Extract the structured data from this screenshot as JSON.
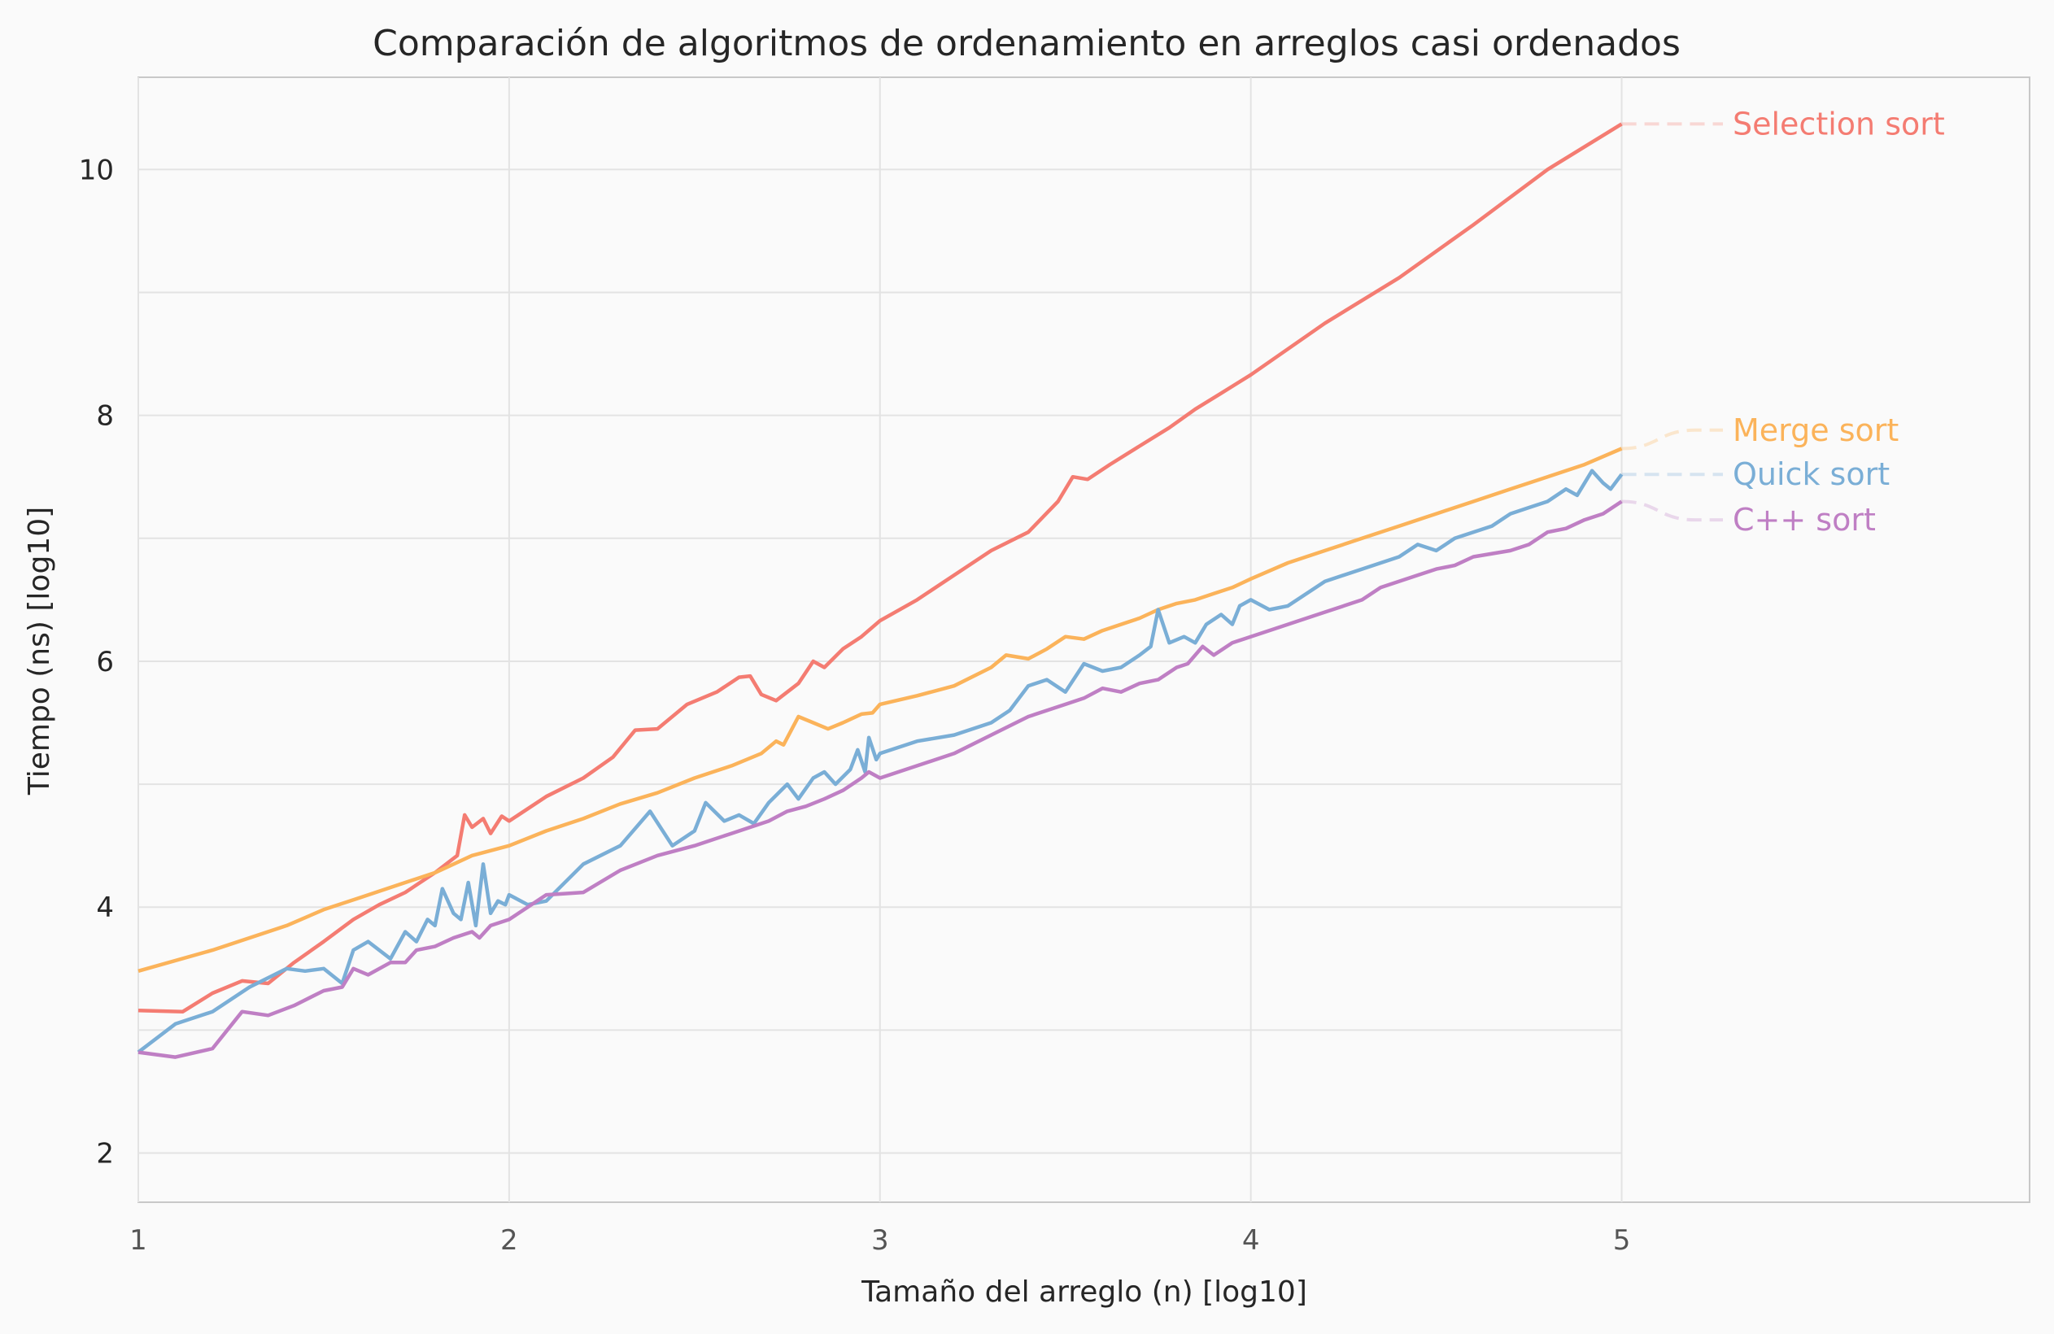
{
  "chart_data": {
    "type": "line",
    "title": "Comparación de algoritmos de ordenamiento en arreglos casi ordenados",
    "xlabel": "Tamaño del arreglo (n) [log10]",
    "ylabel": "Tiempo (ns) [log10]",
    "xlim": [
      1,
      6.1
    ],
    "ylim": [
      1.6,
      10.75
    ],
    "xticks": [
      1,
      2,
      3,
      4,
      5
    ],
    "xtick_labels": [
      "1",
      "2",
      "3",
      "4",
      "5"
    ],
    "yticks": [
      2,
      4,
      6,
      8,
      10
    ],
    "ytick_labels": [
      "2",
      "4",
      "6",
      "8",
      "10"
    ],
    "yminor": [
      3,
      5,
      7,
      9
    ],
    "grid": true,
    "legend": "direct labels at right end of lines",
    "series": [
      {
        "name": "Selection sort",
        "color": "#f47c72",
        "label_y": 10.37,
        "points": [
          [
            1.0,
            3.16
          ],
          [
            1.12,
            3.15
          ],
          [
            1.2,
            3.3
          ],
          [
            1.28,
            3.4
          ],
          [
            1.35,
            3.38
          ],
          [
            1.42,
            3.55
          ],
          [
            1.5,
            3.72
          ],
          [
            1.58,
            3.9
          ],
          [
            1.65,
            4.02
          ],
          [
            1.72,
            4.12
          ],
          [
            1.8,
            4.28
          ],
          [
            1.86,
            4.42
          ],
          [
            1.88,
            4.75
          ],
          [
            1.9,
            4.65
          ],
          [
            1.93,
            4.72
          ],
          [
            1.95,
            4.6
          ],
          [
            1.98,
            4.74
          ],
          [
            2.0,
            4.7
          ],
          [
            2.1,
            4.9
          ],
          [
            2.2,
            5.05
          ],
          [
            2.28,
            5.22
          ],
          [
            2.34,
            5.44
          ],
          [
            2.4,
            5.45
          ],
          [
            2.48,
            5.65
          ],
          [
            2.56,
            5.75
          ],
          [
            2.62,
            5.87
          ],
          [
            2.65,
            5.88
          ],
          [
            2.68,
            5.73
          ],
          [
            2.72,
            5.68
          ],
          [
            2.78,
            5.82
          ],
          [
            2.82,
            6.0
          ],
          [
            2.85,
            5.95
          ],
          [
            2.9,
            6.1
          ],
          [
            2.95,
            6.2
          ],
          [
            3.0,
            6.33
          ],
          [
            3.1,
            6.5
          ],
          [
            3.2,
            6.7
          ],
          [
            3.3,
            6.9
          ],
          [
            3.4,
            7.05
          ],
          [
            3.48,
            7.3
          ],
          [
            3.52,
            7.5
          ],
          [
            3.56,
            7.48
          ],
          [
            3.62,
            7.6
          ],
          [
            3.7,
            7.75
          ],
          [
            3.78,
            7.9
          ],
          [
            3.85,
            8.05
          ],
          [
            3.92,
            8.18
          ],
          [
            4.0,
            8.33
          ],
          [
            4.2,
            8.75
          ],
          [
            4.4,
            9.12
          ],
          [
            4.6,
            9.55
          ],
          [
            4.8,
            10.0
          ],
          [
            5.0,
            10.37
          ]
        ]
      },
      {
        "name": "Merge sort",
        "color": "#fbb35a",
        "label_y": 7.88,
        "points": [
          [
            1.0,
            3.48
          ],
          [
            1.2,
            3.65
          ],
          [
            1.4,
            3.85
          ],
          [
            1.5,
            3.98
          ],
          [
            1.6,
            4.08
          ],
          [
            1.7,
            4.18
          ],
          [
            1.8,
            4.28
          ],
          [
            1.9,
            4.42
          ],
          [
            2.0,
            4.5
          ],
          [
            2.1,
            4.62
          ],
          [
            2.2,
            4.72
          ],
          [
            2.3,
            4.84
          ],
          [
            2.4,
            4.93
          ],
          [
            2.5,
            5.05
          ],
          [
            2.6,
            5.15
          ],
          [
            2.68,
            5.25
          ],
          [
            2.72,
            5.35
          ],
          [
            2.74,
            5.32
          ],
          [
            2.78,
            5.55
          ],
          [
            2.82,
            5.5
          ],
          [
            2.86,
            5.45
          ],
          [
            2.9,
            5.5
          ],
          [
            2.95,
            5.57
          ],
          [
            2.98,
            5.58
          ],
          [
            3.0,
            5.65
          ],
          [
            3.1,
            5.72
          ],
          [
            3.2,
            5.8
          ],
          [
            3.3,
            5.95
          ],
          [
            3.34,
            6.05
          ],
          [
            3.4,
            6.02
          ],
          [
            3.45,
            6.1
          ],
          [
            3.5,
            6.2
          ],
          [
            3.55,
            6.18
          ],
          [
            3.6,
            6.25
          ],
          [
            3.7,
            6.35
          ],
          [
            3.75,
            6.42
          ],
          [
            3.8,
            6.47
          ],
          [
            3.85,
            6.5
          ],
          [
            3.9,
            6.55
          ],
          [
            3.95,
            6.6
          ],
          [
            4.0,
            6.67
          ],
          [
            4.1,
            6.8
          ],
          [
            4.2,
            6.9
          ],
          [
            4.3,
            7.0
          ],
          [
            4.4,
            7.1
          ],
          [
            4.5,
            7.2
          ],
          [
            4.6,
            7.3
          ],
          [
            4.7,
            7.4
          ],
          [
            4.8,
            7.5
          ],
          [
            4.9,
            7.6
          ],
          [
            5.0,
            7.73
          ]
        ]
      },
      {
        "name": "Quick sort",
        "color": "#7aaed6",
        "label_y": 7.52,
        "points": [
          [
            1.0,
            2.82
          ],
          [
            1.1,
            3.05
          ],
          [
            1.2,
            3.15
          ],
          [
            1.3,
            3.35
          ],
          [
            1.4,
            3.5
          ],
          [
            1.45,
            3.48
          ],
          [
            1.5,
            3.5
          ],
          [
            1.55,
            3.38
          ],
          [
            1.58,
            3.65
          ],
          [
            1.62,
            3.72
          ],
          [
            1.68,
            3.58
          ],
          [
            1.72,
            3.8
          ],
          [
            1.75,
            3.72
          ],
          [
            1.78,
            3.9
          ],
          [
            1.8,
            3.85
          ],
          [
            1.82,
            4.15
          ],
          [
            1.85,
            3.95
          ],
          [
            1.87,
            3.9
          ],
          [
            1.89,
            4.2
          ],
          [
            1.91,
            3.85
          ],
          [
            1.93,
            4.35
          ],
          [
            1.95,
            3.95
          ],
          [
            1.97,
            4.05
          ],
          [
            1.99,
            4.02
          ],
          [
            2.0,
            4.1
          ],
          [
            2.05,
            4.02
          ],
          [
            2.1,
            4.05
          ],
          [
            2.2,
            4.35
          ],
          [
            2.3,
            4.5
          ],
          [
            2.38,
            4.78
          ],
          [
            2.44,
            4.5
          ],
          [
            2.5,
            4.62
          ],
          [
            2.53,
            4.85
          ],
          [
            2.58,
            4.7
          ],
          [
            2.62,
            4.75
          ],
          [
            2.66,
            4.68
          ],
          [
            2.7,
            4.85
          ],
          [
            2.75,
            5.0
          ],
          [
            2.78,
            4.88
          ],
          [
            2.82,
            5.05
          ],
          [
            2.85,
            5.1
          ],
          [
            2.88,
            5.0
          ],
          [
            2.92,
            5.12
          ],
          [
            2.94,
            5.28
          ],
          [
            2.96,
            5.1
          ],
          [
            2.97,
            5.38
          ],
          [
            2.99,
            5.2
          ],
          [
            3.0,
            5.25
          ],
          [
            3.1,
            5.35
          ],
          [
            3.2,
            5.4
          ],
          [
            3.3,
            5.5
          ],
          [
            3.35,
            5.6
          ],
          [
            3.4,
            5.8
          ],
          [
            3.45,
            5.85
          ],
          [
            3.5,
            5.75
          ],
          [
            3.55,
            5.98
          ],
          [
            3.6,
            5.92
          ],
          [
            3.65,
            5.95
          ],
          [
            3.7,
            6.05
          ],
          [
            3.73,
            6.12
          ],
          [
            3.75,
            6.42
          ],
          [
            3.78,
            6.15
          ],
          [
            3.82,
            6.2
          ],
          [
            3.85,
            6.15
          ],
          [
            3.88,
            6.3
          ],
          [
            3.92,
            6.38
          ],
          [
            3.95,
            6.3
          ],
          [
            3.97,
            6.45
          ],
          [
            4.0,
            6.5
          ],
          [
            4.05,
            6.42
          ],
          [
            4.1,
            6.45
          ],
          [
            4.2,
            6.65
          ],
          [
            4.3,
            6.75
          ],
          [
            4.4,
            6.85
          ],
          [
            4.45,
            6.95
          ],
          [
            4.5,
            6.9
          ],
          [
            4.55,
            7.0
          ],
          [
            4.6,
            7.05
          ],
          [
            4.65,
            7.1
          ],
          [
            4.7,
            7.2
          ],
          [
            4.75,
            7.25
          ],
          [
            4.8,
            7.3
          ],
          [
            4.85,
            7.4
          ],
          [
            4.88,
            7.35
          ],
          [
            4.92,
            7.55
          ],
          [
            4.95,
            7.45
          ],
          [
            4.97,
            7.4
          ],
          [
            5.0,
            7.52
          ]
        ]
      },
      {
        "name": "C++ sort",
        "color": "#bf7fc4",
        "label_y": 7.15,
        "points": [
          [
            1.0,
            2.82
          ],
          [
            1.1,
            2.78
          ],
          [
            1.2,
            2.85
          ],
          [
            1.28,
            3.15
          ],
          [
            1.35,
            3.12
          ],
          [
            1.42,
            3.2
          ],
          [
            1.5,
            3.32
          ],
          [
            1.55,
            3.35
          ],
          [
            1.58,
            3.5
          ],
          [
            1.62,
            3.45
          ],
          [
            1.68,
            3.55
          ],
          [
            1.72,
            3.55
          ],
          [
            1.75,
            3.65
          ],
          [
            1.8,
            3.68
          ],
          [
            1.85,
            3.75
          ],
          [
            1.9,
            3.8
          ],
          [
            1.92,
            3.75
          ],
          [
            1.95,
            3.85
          ],
          [
            2.0,
            3.9
          ],
          [
            2.1,
            4.1
          ],
          [
            2.2,
            4.12
          ],
          [
            2.3,
            4.3
          ],
          [
            2.4,
            4.42
          ],
          [
            2.5,
            4.5
          ],
          [
            2.55,
            4.55
          ],
          [
            2.6,
            4.6
          ],
          [
            2.65,
            4.65
          ],
          [
            2.7,
            4.7
          ],
          [
            2.75,
            4.78
          ],
          [
            2.8,
            4.82
          ],
          [
            2.85,
            4.88
          ],
          [
            2.9,
            4.95
          ],
          [
            2.95,
            5.05
          ],
          [
            2.97,
            5.1
          ],
          [
            3.0,
            5.05
          ],
          [
            3.1,
            5.15
          ],
          [
            3.2,
            5.25
          ],
          [
            3.3,
            5.4
          ],
          [
            3.4,
            5.55
          ],
          [
            3.5,
            5.65
          ],
          [
            3.55,
            5.7
          ],
          [
            3.6,
            5.78
          ],
          [
            3.65,
            5.75
          ],
          [
            3.7,
            5.82
          ],
          [
            3.75,
            5.85
          ],
          [
            3.8,
            5.95
          ],
          [
            3.83,
            5.98
          ],
          [
            3.87,
            6.12
          ],
          [
            3.9,
            6.05
          ],
          [
            3.95,
            6.15
          ],
          [
            4.0,
            6.2
          ],
          [
            4.1,
            6.3
          ],
          [
            4.2,
            6.4
          ],
          [
            4.3,
            6.5
          ],
          [
            4.35,
            6.6
          ],
          [
            4.45,
            6.7
          ],
          [
            4.5,
            6.75
          ],
          [
            4.55,
            6.78
          ],
          [
            4.6,
            6.85
          ],
          [
            4.7,
            6.9
          ],
          [
            4.75,
            6.95
          ],
          [
            4.8,
            7.05
          ],
          [
            4.85,
            7.08
          ],
          [
            4.9,
            7.15
          ],
          [
            4.95,
            7.2
          ],
          [
            5.0,
            7.3
          ]
        ]
      }
    ]
  }
}
